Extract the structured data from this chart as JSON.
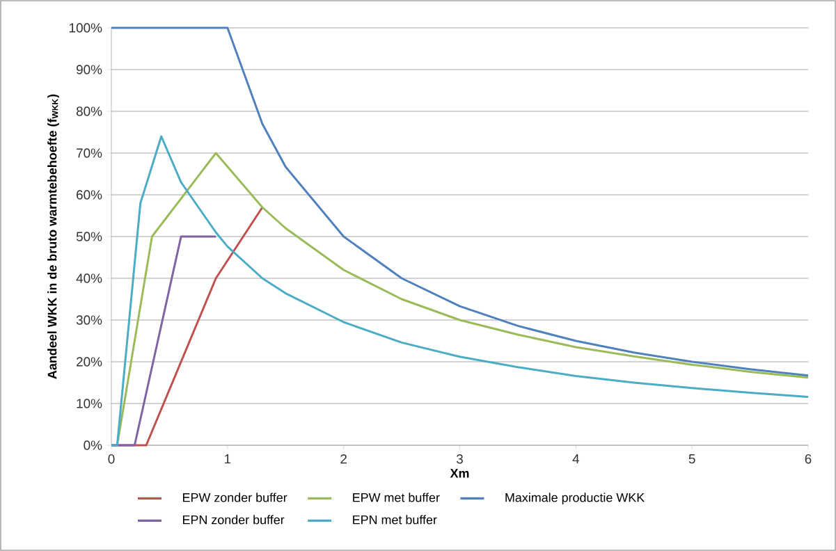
{
  "chart_data": {
    "type": "line",
    "xlabel": "Xm",
    "ylabel": "Aandeel WKK in de bruto warmtebehoefte (f$_{WKK}$)",
    "xlim": [
      0,
      6
    ],
    "ylim": [
      0,
      100
    ],
    "xticks": [
      0,
      1,
      2,
      3,
      4,
      5,
      6
    ],
    "yticks": [
      {
        "value": 0,
        "label": "0%"
      },
      {
        "value": 10,
        "label": "10%"
      },
      {
        "value": 20,
        "label": "20%"
      },
      {
        "value": 30,
        "label": "30%"
      },
      {
        "value": 40,
        "label": "40%"
      },
      {
        "value": 50,
        "label": "50%"
      },
      {
        "value": 60,
        "label": "60%"
      },
      {
        "value": 70,
        "label": "70%"
      },
      {
        "value": 80,
        "label": "80%"
      },
      {
        "value": 90,
        "label": "90%"
      },
      {
        "value": 100,
        "label": "100%"
      }
    ],
    "grid": "y",
    "legend": "bottom",
    "marker": "none",
    "line_style": "solid",
    "series": [
      {
        "name": "EPW zonder buffer",
        "color": "#c0504d",
        "x": [
          0,
          0.3,
          0.9,
          1.3
        ],
        "values": [
          0,
          0,
          40,
          57
        ]
      },
      {
        "name": "EPW met buffer",
        "color": "#9bbb59",
        "x": [
          0.05,
          0.35,
          0.9,
          1.3,
          1.5,
          2,
          2.5,
          3,
          3.5,
          4,
          4.5,
          5,
          5.5,
          6
        ],
        "values": [
          0,
          50,
          70,
          57,
          52,
          42,
          35,
          30,
          26.5,
          23.5,
          21.3,
          19.3,
          17.6,
          16.2
        ]
      },
      {
        "name": "Maximale productie WKK",
        "color": "#4f81bd",
        "x": [
          0,
          1,
          1.3,
          1.5,
          2,
          2.5,
          3,
          3.5,
          4,
          4.5,
          5,
          5.5,
          6
        ],
        "values": [
          100,
          100,
          77,
          66.7,
          50,
          40,
          33.3,
          28.6,
          25,
          22.2,
          20,
          18.2,
          16.7
        ]
      },
      {
        "name": "EPN zonder buffer",
        "color": "#8064a2",
        "x": [
          0,
          0.2,
          0.6,
          0.9
        ],
        "values": [
          0,
          0,
          50,
          50
        ]
      },
      {
        "name": "EPN met buffer",
        "color": "#4bacc6",
        "x": [
          0,
          0.05,
          0.25,
          0.43,
          0.6,
          0.9,
          1,
          1.3,
          1.5,
          2,
          2.5,
          3,
          3.5,
          4,
          4.5,
          5,
          5.5,
          6
        ],
        "values": [
          0,
          0,
          58,
          74,
          63,
          51,
          47.6,
          40,
          36.4,
          29.5,
          24.6,
          21.2,
          18.7,
          16.6,
          15,
          13.7,
          12.6,
          11.6
        ]
      }
    ]
  }
}
